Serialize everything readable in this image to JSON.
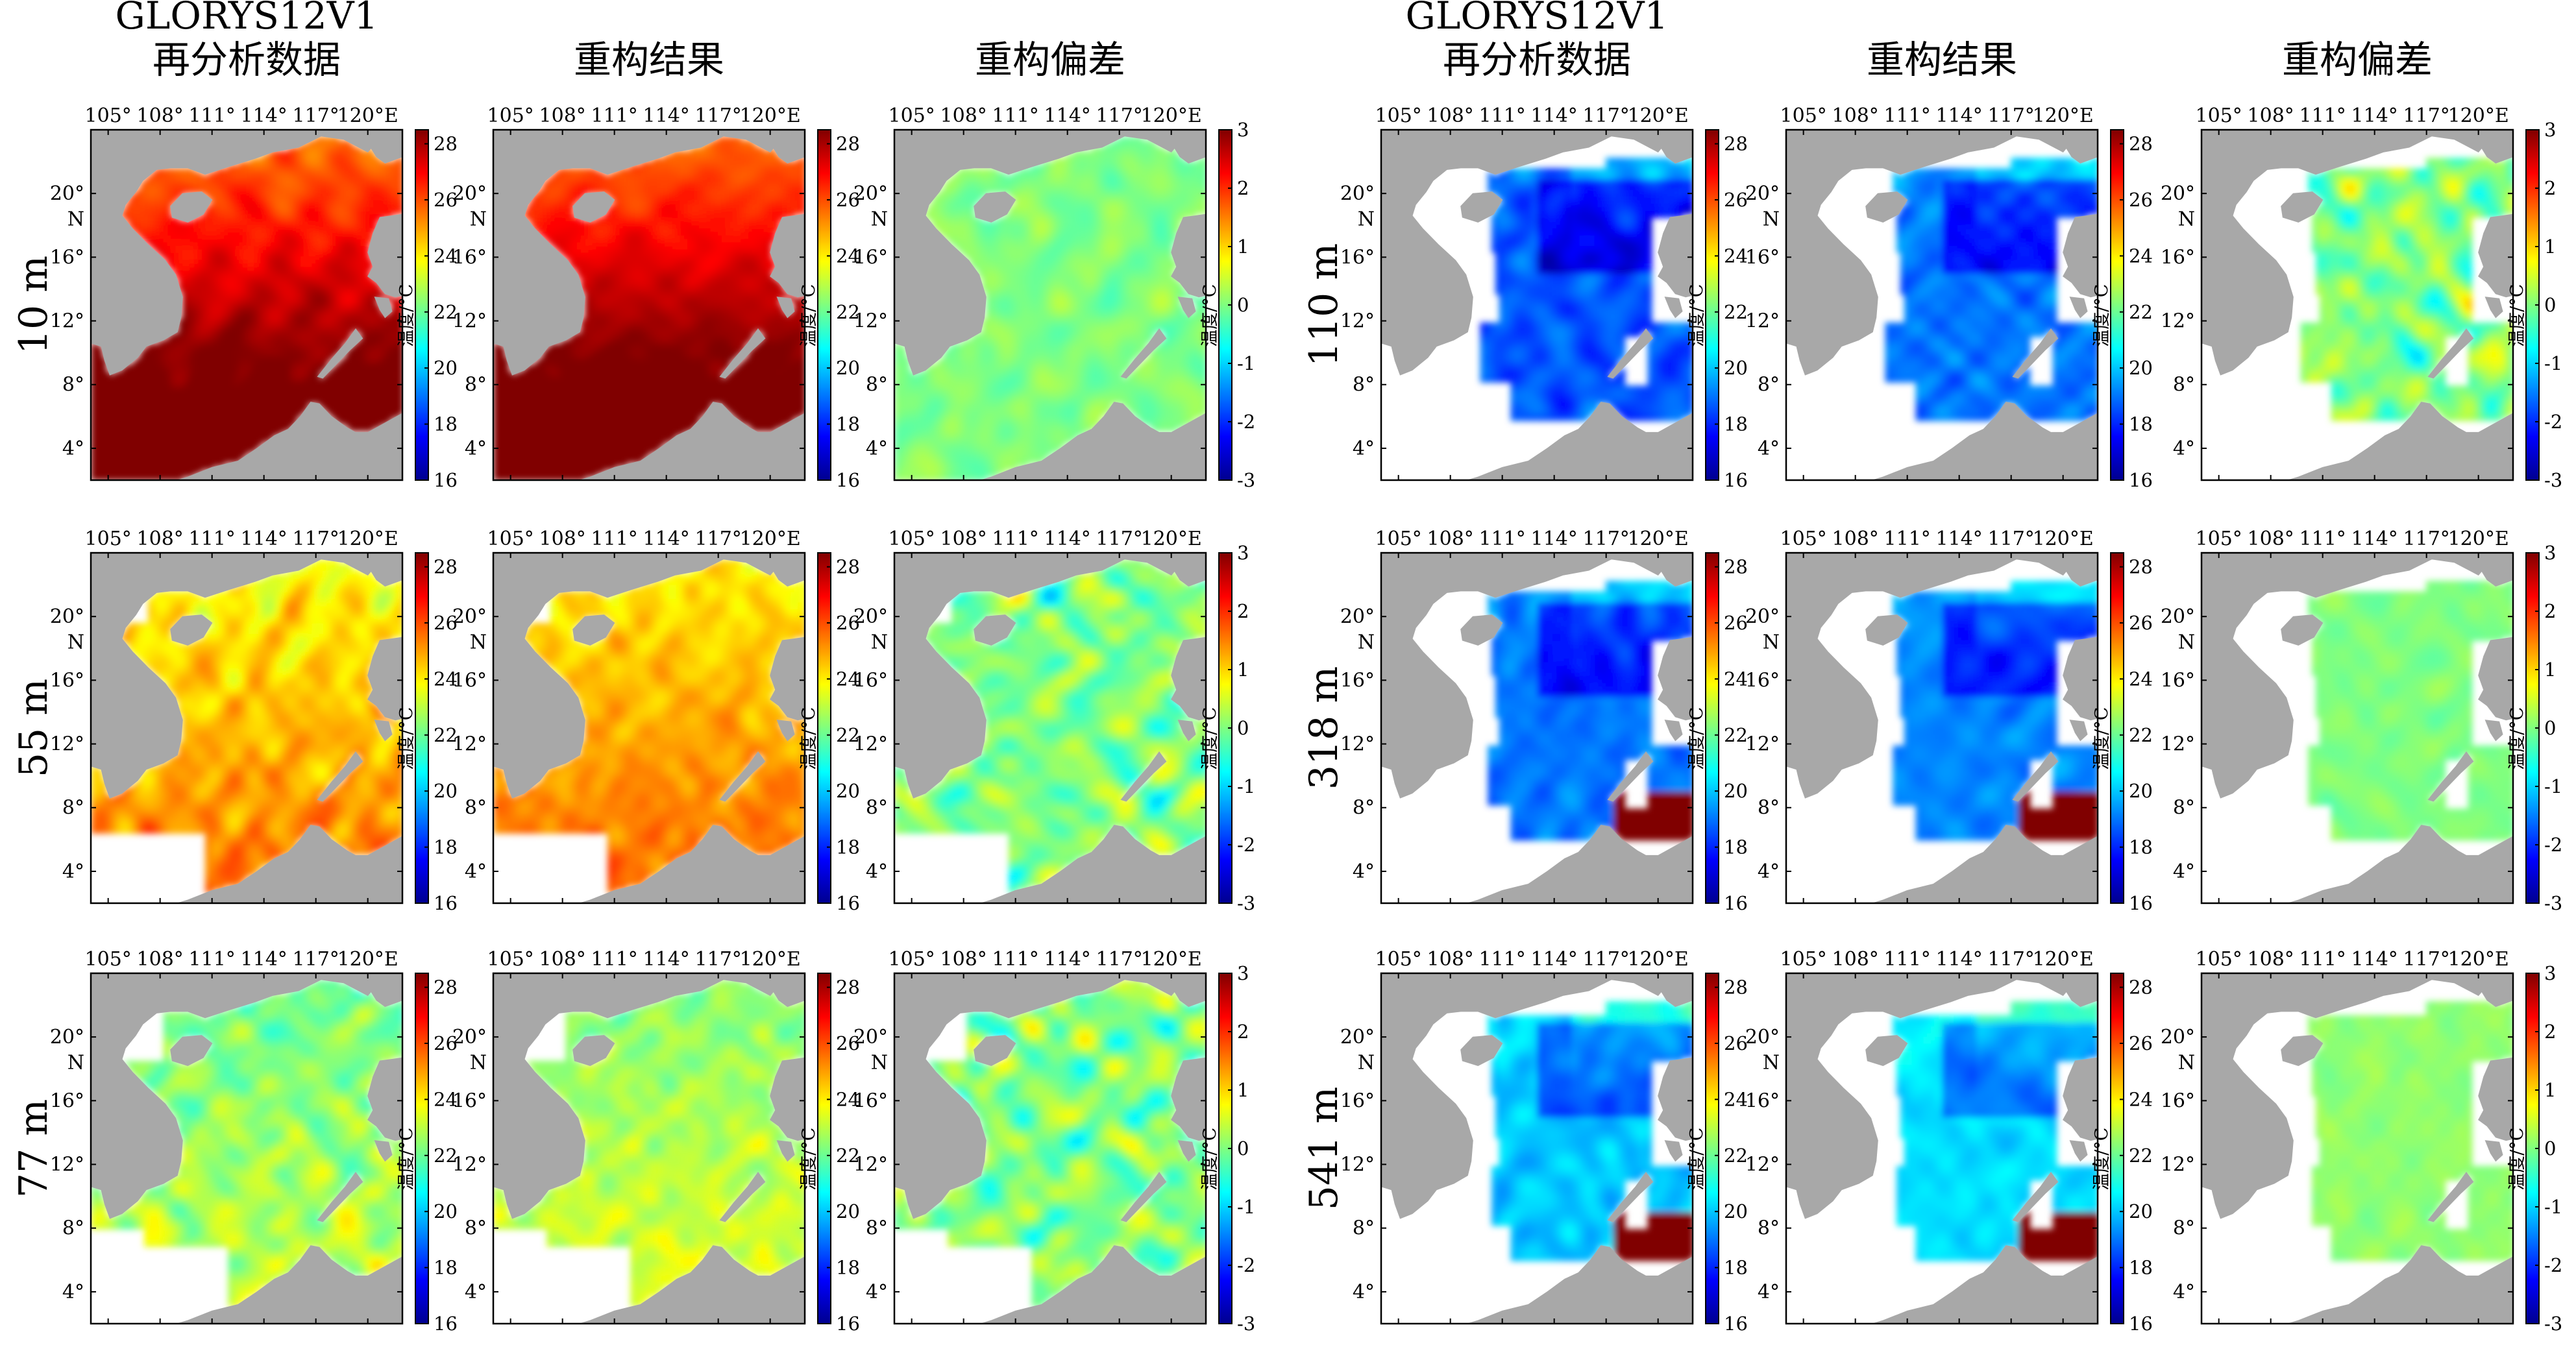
{
  "page": {
    "background": "#ffffff"
  },
  "chart_data": {
    "type": "heatmap",
    "region": "South China Sea",
    "x_ticks": [
      "105°",
      "108°",
      "111°",
      "114°",
      "117°",
      "120°E"
    ],
    "y_ticks": [
      "20°",
      "N",
      "16°",
      "12°",
      "8°",
      "4°"
    ],
    "xlim": [
      104,
      122
    ],
    "ylim": [
      2,
      24
    ],
    "colorbars": {
      "temperature": {
        "label": "温度/°C",
        "ticks": [
          28,
          26,
          24,
          22,
          20,
          18,
          16
        ],
        "range": [
          16,
          28.5
        ]
      },
      "bias": {
        "label": "温度/°C",
        "ticks": [
          3,
          2,
          1,
          0,
          -1,
          -2,
          -3
        ],
        "range": [
          -3,
          3
        ]
      }
    },
    "column_titles": [
      {
        "col": 0,
        "lines": [
          "GLORYS12V1",
          "再分析数据"
        ]
      },
      {
        "col": 1,
        "lines": [
          "重构结果"
        ]
      },
      {
        "col": 2,
        "lines": [
          "重构偏差"
        ]
      },
      {
        "col": 3,
        "lines": [
          "GLORYS12V1",
          "再分析数据"
        ]
      },
      {
        "col": 4,
        "lines": [
          "重构结果"
        ]
      },
      {
        "col": 5,
        "lines": [
          "重构偏差"
        ]
      }
    ],
    "depth_labels": [
      "10 m",
      "55 m",
      "77 m",
      "110 m",
      "318 m",
      "541 m"
    ],
    "panels": [
      {
        "id": "10m-reanalysis",
        "depth": "10 m",
        "kind": "temperature",
        "mean": 27.3,
        "spread": 1.1,
        "gradient": 1.5,
        "seed": 11
      },
      {
        "id": "10m-reconstruction",
        "depth": "10 m",
        "kind": "temperature",
        "mean": 27.4,
        "spread": 0.8,
        "gradient": 1.5,
        "seed": 12
      },
      {
        "id": "10m-bias",
        "depth": "10 m",
        "kind": "bias",
        "mean": 0.0,
        "spread": 0.6,
        "gradient": 0,
        "seed": 13
      },
      {
        "id": "55m-reanalysis",
        "depth": "55 m",
        "kind": "temperature",
        "mean": 24.5,
        "spread": 1.8,
        "gradient": 0.6,
        "seed": 21
      },
      {
        "id": "55m-reconstruction",
        "depth": "55 m",
        "kind": "temperature",
        "mean": 24.7,
        "spread": 1.3,
        "gradient": 0.6,
        "seed": 22
      },
      {
        "id": "55m-bias",
        "depth": "55 m",
        "kind": "bias",
        "mean": 0.0,
        "spread": 1.3,
        "gradient": 0,
        "seed": 23
      },
      {
        "id": "77m-reanalysis",
        "depth": "77 m",
        "kind": "temperature",
        "mean": 22.5,
        "spread": 2.0,
        "gradient": 0.4,
        "seed": 31
      },
      {
        "id": "77m-reconstruction",
        "depth": "77 m",
        "kind": "temperature",
        "mean": 22.8,
        "spread": 1.5,
        "gradient": 0.4,
        "seed": 32
      },
      {
        "id": "77m-bias",
        "depth": "77 m",
        "kind": "bias",
        "mean": 0.0,
        "spread": 1.5,
        "gradient": 0,
        "seed": 33
      },
      {
        "id": "110m-reanalysis",
        "depth": "110 m",
        "kind": "temperature",
        "mean": 18.6,
        "spread": 1.6,
        "gradient": 0,
        "seed": 41
      },
      {
        "id": "110m-reconstruction",
        "depth": "110 m",
        "kind": "temperature",
        "mean": 19.0,
        "spread": 1.2,
        "gradient": 0,
        "seed": 42
      },
      {
        "id": "110m-bias",
        "depth": "110 m",
        "kind": "bias",
        "mean": 0.0,
        "spread": 1.6,
        "gradient": 0,
        "seed": 43
      },
      {
        "id": "318m-reanalysis",
        "depth": "318 m",
        "kind": "temperature",
        "mean": 19.0,
        "spread": 1.2,
        "gradient": 0,
        "seed": 51
      },
      {
        "id": "318m-reconstruction",
        "depth": "318 m",
        "kind": "temperature",
        "mean": 19.2,
        "spread": 1.0,
        "gradient": 0,
        "seed": 52
      },
      {
        "id": "318m-bias",
        "depth": "318 m",
        "kind": "bias",
        "mean": 0.0,
        "spread": 0.35,
        "gradient": 0,
        "seed": 53
      },
      {
        "id": "541m-reanalysis",
        "depth": "541 m",
        "kind": "temperature",
        "mean": 20.0,
        "spread": 1.2,
        "gradient": 0,
        "seed": 61
      },
      {
        "id": "541m-reconstruction",
        "depth": "541 m",
        "kind": "temperature",
        "mean": 20.3,
        "spread": 1.0,
        "gradient": 0,
        "seed": 62
      },
      {
        "id": "541m-bias",
        "depth": "541 m",
        "kind": "bias",
        "mean": 0.1,
        "spread": 0.35,
        "gradient": 0,
        "seed": 63
      }
    ]
  }
}
